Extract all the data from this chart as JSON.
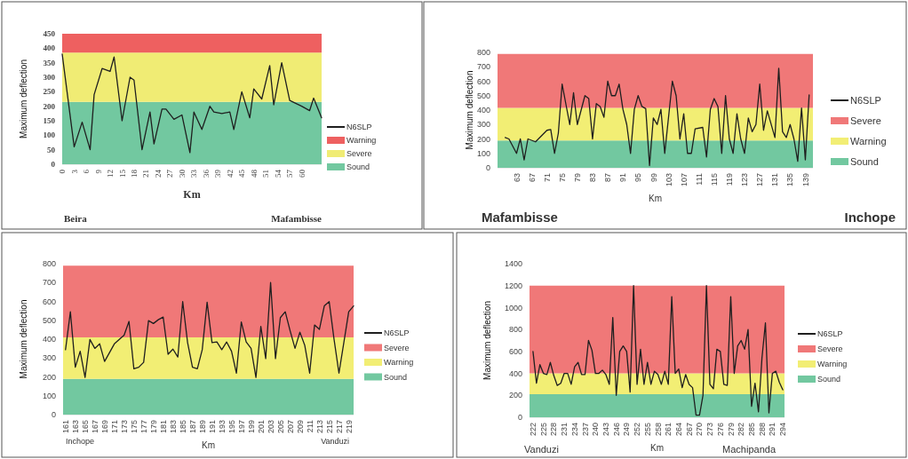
{
  "chart_data": [
    {
      "type": "line",
      "stacked": true,
      "xlabel": "Km",
      "ylabel": "Maximum deflection",
      "annotations": [
        "Beira",
        "Mafambisse"
      ],
      "legend": "right",
      "xlim": [
        0,
        65
      ],
      "xticks": [
        0,
        3,
        6,
        9,
        12,
        15,
        18,
        21,
        24,
        27,
        30,
        33,
        36,
        39,
        42,
        45,
        48,
        51,
        54,
        57,
        60
      ],
      "ylim": [
        0,
        450
      ],
      "yticks": [
        0,
        50,
        100,
        150,
        200,
        250,
        300,
        350,
        400,
        450
      ],
      "series": [
        {
          "name": "N6SLP",
          "color": "#1f1f1f",
          "x": [
            0,
            3,
            5,
            7,
            8,
            10,
            12,
            13,
            15,
            17,
            18,
            20,
            22,
            23,
            25,
            26,
            28,
            30,
            32,
            33,
            35,
            37,
            38,
            40,
            42,
            43,
            45,
            47,
            48,
            50,
            52,
            53,
            55,
            57,
            60,
            62,
            63,
            65
          ],
          "values": [
            380,
            60,
            145,
            50,
            240,
            330,
            320,
            370,
            150,
            300,
            290,
            50,
            180,
            70,
            190,
            190,
            155,
            170,
            40,
            180,
            120,
            200,
            180,
            175,
            180,
            120,
            250,
            160,
            260,
            225,
            340,
            205,
            350,
            220,
            200,
            185,
            228,
            160
          ]
        },
        {
          "type": "area",
          "name": "Sound",
          "color": "#72c8a0",
          "x": [
            0,
            65
          ],
          "values": [
            215,
            215
          ]
        },
        {
          "type": "area",
          "name": "Severe",
          "color": "#f0ec74",
          "x": [
            0,
            65
          ],
          "values": [
            170,
            170
          ]
        },
        {
          "type": "area",
          "name": "Warning",
          "color": "#ee6060",
          "x": [
            0,
            65
          ],
          "values": [
            65,
            65
          ]
        }
      ]
    },
    {
      "type": "line",
      "stacked": true,
      "xlabel": "Km",
      "ylabel": "Maximum deflection",
      "annotations": [
        "Mafambisse",
        "Inchope"
      ],
      "legend": "right",
      "xlim": [
        58,
        141
      ],
      "xticks": [
        63,
        67,
        71,
        75,
        79,
        83,
        87,
        91,
        95,
        99,
        103,
        107,
        111,
        115,
        119,
        123,
        127,
        131,
        135,
        139
      ],
      "ylim": [
        0,
        800
      ],
      "yticks": [
        0,
        100,
        200,
        300,
        400,
        500,
        600,
        700,
        800
      ],
      "series": [
        {
          "name": "N6SLP",
          "color": "#1f1f1f",
          "x": [
            60,
            61,
            63,
            64,
            65,
            66,
            68,
            71,
            72,
            73,
            74,
            75,
            77,
            78,
            79,
            81,
            82,
            83,
            84,
            85,
            86,
            87,
            88,
            89,
            90,
            91,
            92,
            93,
            94,
            95,
            96,
            97,
            98,
            99,
            100,
            101,
            102,
            104,
            105,
            106,
            107,
            108,
            109,
            110,
            112,
            113,
            114,
            115,
            116,
            117,
            118,
            119,
            120,
            121,
            122,
            123,
            124,
            125,
            126,
            127,
            128,
            129,
            131,
            132,
            133,
            134,
            135,
            136,
            137,
            138,
            139,
            140
          ],
          "values": [
            210,
            200,
            100,
            200,
            55,
            200,
            180,
            260,
            265,
            100,
            240,
            580,
            300,
            520,
            300,
            500,
            480,
            200,
            445,
            425,
            350,
            600,
            500,
            500,
            580,
            405,
            300,
            100,
            405,
            500,
            425,
            410,
            15,
            345,
            300,
            405,
            100,
            600,
            500,
            200,
            375,
            100,
            100,
            270,
            280,
            75,
            405,
            480,
            425,
            100,
            500,
            200,
            100,
            375,
            200,
            100,
            345,
            250,
            300,
            580,
            260,
            395,
            210,
            690,
            250,
            210,
            300,
            200,
            45,
            415,
            55,
            505
          ]
        },
        {
          "type": "area",
          "name": "Sound",
          "color": "#72c8a0",
          "x": [
            58,
            141
          ],
          "values": [
            190,
            190
          ]
        },
        {
          "type": "area",
          "name": "Warning",
          "color": "#f2ee74",
          "x": [
            58,
            141
          ],
          "values": [
            225,
            225
          ]
        },
        {
          "type": "area",
          "name": "Severe",
          "color": "#f07878",
          "x": [
            58,
            141
          ],
          "values": [
            375,
            375
          ]
        }
      ]
    },
    {
      "type": "line",
      "stacked": true,
      "xlabel": "Km",
      "ylabel": "Maximum deflection",
      "annotations": [
        "Inchope",
        "Vanduzi"
      ],
      "legend": "right",
      "xlim": [
        160.5,
        220
      ],
      "xticks": [
        161,
        163,
        165,
        167,
        169,
        171,
        173,
        175,
        177,
        179,
        181,
        183,
        185,
        187,
        189,
        191,
        193,
        195,
        197,
        199,
        201,
        203,
        205,
        207,
        209,
        211,
        213,
        215,
        217,
        219
      ],
      "ylim": [
        0,
        800
      ],
      "yticks": [
        0,
        100,
        200,
        300,
        400,
        500,
        600,
        700,
        800
      ],
      "series": [
        {
          "name": "N6SLP",
          "color": "#1f1f1f",
          "x": [
            161,
            162,
            163,
            164,
            165,
            166,
            167,
            168,
            169,
            171,
            173,
            174,
            175,
            176,
            177,
            178,
            179,
            180,
            181,
            182,
            183,
            184,
            185,
            186,
            187,
            188,
            189,
            190,
            191,
            192,
            193,
            194,
            195,
            196,
            197,
            198,
            199,
            200,
            201,
            202,
            203,
            204,
            205,
            206,
            207,
            208,
            209,
            210,
            211,
            212,
            213,
            214,
            215,
            216,
            217,
            218,
            219,
            220
          ],
          "values": [
            344,
            545,
            251,
            336,
            197,
            398,
            351,
            375,
            282,
            375,
            421,
            494,
            243,
            251,
            277,
            498,
            483,
            503,
            517,
            320,
            347,
            305,
            599,
            382,
            251,
            243,
            344,
            596,
            382,
            385,
            344,
            385,
            336,
            220,
            491,
            385,
            351,
            197,
            467,
            297,
            700,
            297,
            514,
            545,
            444,
            351,
            437,
            367,
            220,
            475,
            452,
            576,
            599,
            398,
            220,
            382,
            545,
            576
          ]
        },
        {
          "type": "area",
          "name": "Sound",
          "color": "#72c8a0",
          "x": [
            160.5,
            220
          ],
          "values": [
            190,
            190
          ]
        },
        {
          "type": "area",
          "name": "Warning",
          "color": "#f2ee74",
          "x": [
            160.5,
            220
          ],
          "values": [
            220,
            220
          ]
        },
        {
          "type": "area",
          "name": "Severe",
          "color": "#f07878",
          "x": [
            160.5,
            220
          ],
          "values": [
            380,
            380
          ]
        }
      ]
    },
    {
      "type": "line",
      "stacked": true,
      "xlabel": "Km",
      "ylabel": "Maximum deflection",
      "annotations": [
        "Vanduzi",
        "Machipanda"
      ],
      "legend": "right",
      "xlim": [
        221,
        294.5
      ],
      "xticks": [
        222,
        225,
        228,
        231,
        234,
        237,
        240,
        243,
        246,
        249,
        252,
        255,
        258,
        261,
        264,
        267,
        270,
        273,
        276,
        279,
        282,
        285,
        288,
        291,
        294
      ],
      "ylim": [
        0,
        1400
      ],
      "yticks": [
        0,
        200,
        400,
        600,
        800,
        1000,
        1200,
        1400
      ],
      "series": [
        {
          "name": "N6SLP",
          "color": "#1f1f1f",
          "x": [
            222,
            223,
            224,
            225,
            226,
            227,
            228,
            229,
            230,
            231,
            232,
            233,
            234,
            235,
            236,
            237,
            238,
            239,
            240,
            241,
            242,
            243,
            244,
            245,
            246,
            247,
            248,
            249,
            250,
            251,
            252,
            253,
            254,
            255,
            256,
            257,
            258,
            259,
            260,
            261,
            262,
            263,
            264,
            265,
            266,
            267,
            268,
            269,
            270,
            271,
            272,
            273,
            274,
            275,
            276,
            277,
            278,
            279,
            280,
            281,
            282,
            283,
            284,
            285,
            286,
            287,
            288,
            289,
            290,
            291,
            292,
            293,
            294
          ],
          "values": [
            600,
            310,
            480,
            400,
            390,
            500,
            380,
            290,
            310,
            400,
            400,
            300,
            460,
            500,
            390,
            390,
            700,
            610,
            400,
            400,
            430,
            390,
            300,
            910,
            200,
            600,
            650,
            600,
            230,
            1200,
            300,
            620,
            300,
            500,
            300,
            420,
            390,
            300,
            420,
            300,
            1100,
            400,
            440,
            270,
            390,
            300,
            270,
            20,
            20,
            200,
            1200,
            300,
            260,
            620,
            600,
            300,
            290,
            1100,
            400,
            650,
            700,
            620,
            800,
            100,
            310,
            50,
            540,
            860,
            40,
            400,
            420,
            320,
            250
          ]
        },
        {
          "type": "area",
          "name": "Sound",
          "color": "#72c8a0",
          "x": [
            221,
            294.5
          ],
          "values": [
            210,
            210
          ]
        },
        {
          "type": "area",
          "name": "Warning",
          "color": "#f2ee74",
          "x": [
            221,
            294.5
          ],
          "values": [
            190,
            190
          ]
        },
        {
          "type": "area",
          "name": "Severe",
          "color": "#f07878",
          "x": [
            221,
            294.5
          ],
          "values": [
            800,
            800
          ]
        }
      ]
    }
  ]
}
